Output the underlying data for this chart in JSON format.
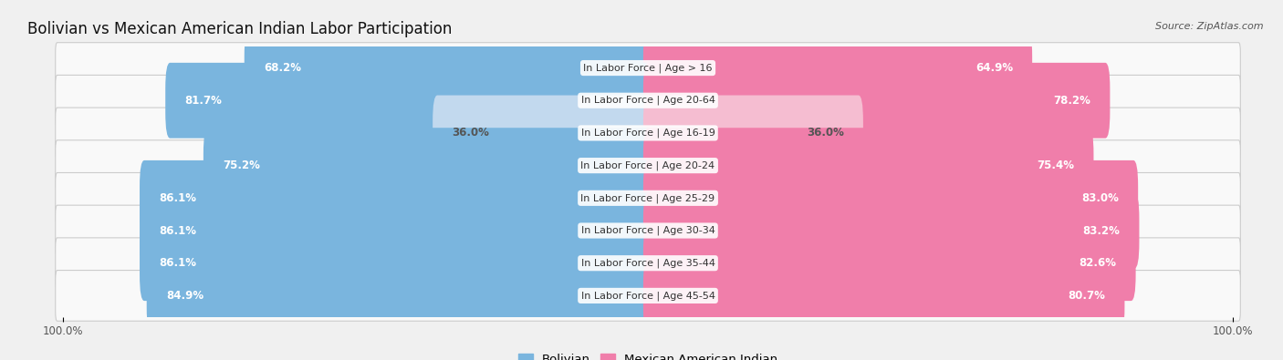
{
  "title": "Bolivian vs Mexican American Indian Labor Participation",
  "source": "Source: ZipAtlas.com",
  "categories": [
    "In Labor Force | Age > 16",
    "In Labor Force | Age 20-64",
    "In Labor Force | Age 16-19",
    "In Labor Force | Age 20-24",
    "In Labor Force | Age 25-29",
    "In Labor Force | Age 30-34",
    "In Labor Force | Age 35-44",
    "In Labor Force | Age 45-54"
  ],
  "bolivian_values": [
    68.2,
    81.7,
    36.0,
    75.2,
    86.1,
    86.1,
    86.1,
    84.9
  ],
  "mexican_values": [
    64.9,
    78.2,
    36.0,
    75.4,
    83.0,
    83.2,
    82.6,
    80.7
  ],
  "bolivian_color": "#7ab5de",
  "bolivian_color_light": "#c2d9ee",
  "mexican_color": "#f07eaa",
  "mexican_color_light": "#f5bdd1",
  "background_color": "#f0f0f0",
  "row_bg_light": "#f8f8f8",
  "row_bg_dark": "#e8e8e8",
  "label_fontsize": 8.5,
  "title_fontsize": 12,
  "legend_fontsize": 9.5,
  "axis_label": "100.0%",
  "max_value": 100.0,
  "light_threshold": 50
}
